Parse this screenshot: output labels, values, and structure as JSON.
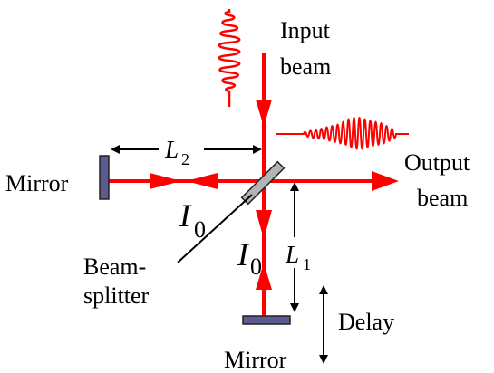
{
  "labels": {
    "input_beam_line1": "Input",
    "input_beam_line2": "beam",
    "output_beam_line1": "Output",
    "output_beam_line2": "beam",
    "mirror_left": "Mirror",
    "mirror_bottom": "Mirror",
    "beamsplitter_line1": "Beam-",
    "beamsplitter_line2": "splitter",
    "delay": "Delay"
  },
  "symbols": {
    "l2": "L",
    "l2_sub": "2",
    "l1": "L",
    "l1_sub": "1",
    "i0_left": "I",
    "i0_left_sub": "0",
    "i0_center": "I",
    "i0_center_sub": "0"
  },
  "colors": {
    "beam": "#ff0000",
    "mirror_fill": "#5b5b8f",
    "splitter_fill": "#b3b3b3"
  }
}
